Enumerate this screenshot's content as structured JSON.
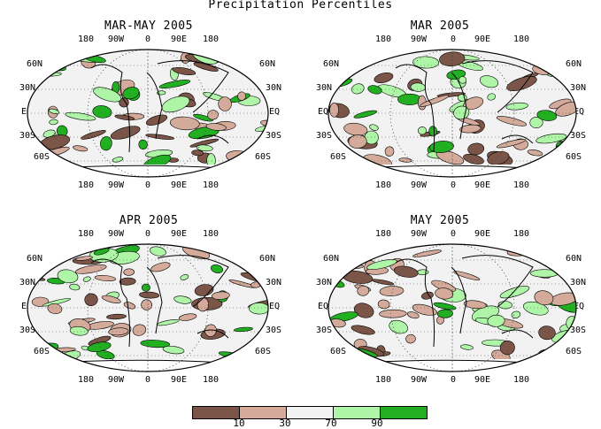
{
  "title": "Precipitation Percentiles",
  "colors": {
    "very_dry": "#7a5548",
    "dry": "#d4aa9b",
    "normal": "#f2f2f2",
    "wet": "#aef5a8",
    "very_wet": "#22b022",
    "line": "#000000"
  },
  "lon_labels": [
    "180",
    "90W",
    "0",
    "90E",
    "180"
  ],
  "lat_labels_left": [
    "60N",
    "30N",
    "EQ",
    "30S",
    "60S"
  ],
  "lat_labels_right": [
    "60N",
    "30N",
    "EQ",
    "30S",
    "60S"
  ],
  "panels": [
    {
      "title": "MAR-MAY 2005"
    },
    {
      "title": "MAR 2005"
    },
    {
      "title": "APR 2005"
    },
    {
      "title": "MAY 2005"
    }
  ],
  "legend": {
    "categories": [
      "very_dry",
      "dry",
      "normal",
      "wet",
      "very_wet"
    ],
    "tick_labels": [
      "10",
      "30",
      "70",
      "90"
    ]
  }
}
